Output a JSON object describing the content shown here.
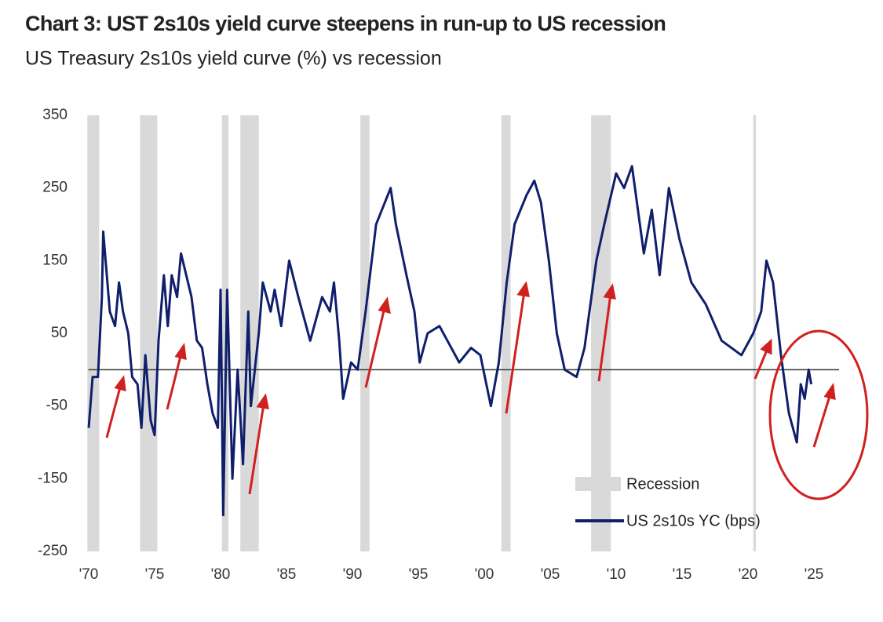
{
  "chart_data": {
    "type": "line",
    "title": "Chart 3: UST 2s10s yield curve steepens in run-up to US recession",
    "subtitle": "US Treasury 2s10s yield curve (%) vs recession",
    "x": [
      1970.0,
      1970.3,
      1970.7,
      1971.0,
      1971.1,
      1971.6,
      1972.0,
      1972.3,
      1972.6,
      1973.0,
      1973.3,
      1973.7,
      1974.0,
      1974.3,
      1974.7,
      1975.0,
      1975.3,
      1975.7,
      1976.0,
      1976.3,
      1976.7,
      1977.0,
      1977.4,
      1977.8,
      1978.2,
      1978.6,
      1979.0,
      1979.4,
      1979.8,
      1980.0,
      1980.2,
      1980.5,
      1980.9,
      1981.3,
      1981.7,
      1982.1,
      1982.3,
      1982.9,
      1983.2,
      1983.8,
      1984.1,
      1984.6,
      1985.2,
      1985.9,
      1986.8,
      1987.7,
      1988.3,
      1988.6,
      1989.0,
      1989.3,
      1989.9,
      1990.4,
      1991.0,
      1991.8,
      1992.9,
      1993.3,
      1994.1,
      1994.7,
      1995.1,
      1995.7,
      1996.6,
      1997.2,
      1998.1,
      1999.0,
      1999.7,
      2000.5,
      2001.1,
      2001.7,
      2002.3,
      2003.2,
      2003.8,
      2004.3,
      2004.9,
      2005.5,
      2006.1,
      2007.0,
      2007.6,
      2008.5,
      2009.1,
      2010.0,
      2010.6,
      2011.2,
      2012.1,
      2012.7,
      2013.3,
      2014.0,
      2014.8,
      2015.7,
      2016.8,
      2018.0,
      2019.5,
      2020.4,
      2021.0,
      2021.4,
      2021.9,
      2022.5,
      2023.1,
      2023.7,
      2024.0,
      2024.3,
      2024.6,
      2024.8
    ],
    "series": [
      {
        "name": "US 2s10s YC (bps)",
        "color": "#0f1f6b",
        "values": [
          -80,
          -10,
          -10,
          100,
          190,
          80,
          60,
          120,
          80,
          50,
          -10,
          -20,
          -80,
          20,
          -70,
          -90,
          40,
          130,
          60,
          130,
          100,
          160,
          130,
          100,
          40,
          30,
          -20,
          -60,
          -80,
          110,
          -200,
          110,
          -150,
          0,
          -130,
          80,
          -50,
          50,
          120,
          80,
          110,
          60,
          150,
          100,
          40,
          100,
          80,
          120,
          40,
          -40,
          10,
          0,
          80,
          200,
          250,
          200,
          130,
          80,
          10,
          50,
          60,
          40,
          10,
          30,
          20,
          -50,
          10,
          120,
          200,
          240,
          260,
          230,
          150,
          50,
          0,
          -10,
          30,
          150,
          200,
          270,
          250,
          280,
          160,
          220,
          130,
          250,
          180,
          120,
          90,
          40,
          20,
          50,
          80,
          150,
          120,
          20,
          -60,
          -100,
          -20,
          -40,
          0,
          -20
        ]
      }
    ],
    "recession_label": "Recession",
    "recession_color": "#d9d9d9",
    "recessions": [
      [
        1969.9,
        1970.8
      ],
      [
        1973.9,
        1975.2
      ],
      [
        1980.1,
        1980.6
      ],
      [
        1981.5,
        1982.9
      ],
      [
        1990.6,
        1991.3
      ],
      [
        2001.3,
        2002.0
      ],
      [
        2008.1,
        2009.6
      ],
      [
        2020.4,
        2020.6
      ]
    ],
    "xlim": [
      1969.5,
      2027.5
    ],
    "xticks": [
      {
        "value": 1970,
        "label": "'70"
      },
      {
        "value": 1975,
        "label": "'75"
      },
      {
        "value": 1980,
        "label": "'80"
      },
      {
        "value": 1985,
        "label": "'85"
      },
      {
        "value": 1990,
        "label": "'90"
      },
      {
        "value": 1995,
        "label": "'95"
      },
      {
        "value": 2000,
        "label": "'00"
      },
      {
        "value": 2005,
        "label": "'05"
      },
      {
        "value": 2010,
        "label": "'10"
      },
      {
        "value": 2015,
        "label": "'15"
      },
      {
        "value": 2020,
        "label": "'20"
      },
      {
        "value": 2025,
        "label": "'25"
      }
    ],
    "ylim": [
      -250,
      350
    ],
    "yticks": [
      350,
      250,
      150,
      50,
      -50,
      -150,
      -250
    ],
    "grid": false
  }
}
